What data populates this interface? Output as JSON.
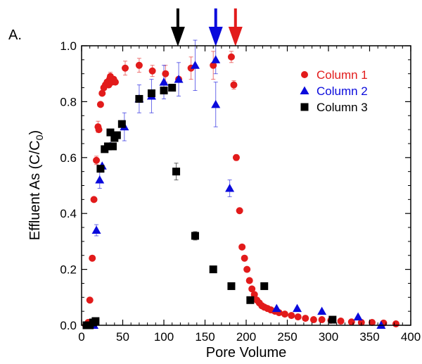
{
  "chart_data": {
    "type": "scatter",
    "panel_label": "A.",
    "xlabel": "Pore Volume",
    "ylabel_main": "Effluent As (C/C",
    "ylabel_sub": "0",
    "ylabel_close": ")",
    "xlim": [
      0,
      400
    ],
    "ylim": [
      0,
      1.0
    ],
    "xticks": [
      0,
      50,
      100,
      150,
      200,
      250,
      300,
      350,
      400
    ],
    "yticks": [
      0.0,
      0.2,
      0.4,
      0.6,
      0.8,
      1.0
    ],
    "xtick_labels": [
      "0",
      "50",
      "100",
      "150",
      "200",
      "250",
      "300",
      "350",
      "400"
    ],
    "ytick_labels": [
      "0.0",
      "0.2",
      "0.4",
      "0.6",
      "0.8",
      "1.0"
    ],
    "grid": false,
    "legend_position": "top-right",
    "arrows": [
      {
        "x": 117,
        "color": "#000000"
      },
      {
        "x": 163,
        "color": "#0a0adc"
      },
      {
        "x": 187,
        "color": "#e21b1b"
      }
    ],
    "series": [
      {
        "name": "Column 1",
        "color": "#e21b1b",
        "marker": "circle",
        "points": [
          [
            5,
            0.0
          ],
          [
            8,
            0.01
          ],
          [
            10,
            0.09
          ],
          [
            13,
            0.24
          ],
          [
            15,
            0.45
          ],
          [
            18,
            0.59
          ],
          [
            20,
            0.71
          ],
          [
            21,
            0.7
          ],
          [
            23,
            0.79
          ],
          [
            25,
            0.83
          ],
          [
            27,
            0.85
          ],
          [
            29,
            0.86
          ],
          [
            31,
            0.87
          ],
          [
            33,
            0.86
          ],
          [
            34,
            0.88
          ],
          [
            35,
            0.89
          ],
          [
            37,
            0.87
          ],
          [
            39,
            0.88
          ],
          [
            41,
            0.87
          ],
          [
            53,
            0.92
          ],
          [
            70,
            0.93
          ],
          [
            86,
            0.91
          ],
          [
            102,
            0.9
          ],
          [
            118,
            0.88
          ],
          [
            133,
            0.92
          ],
          [
            160,
            0.93
          ],
          [
            182,
            0.96
          ],
          [
            185,
            0.86
          ],
          [
            188,
            0.6
          ],
          [
            192,
            0.41
          ],
          [
            195,
            0.28
          ],
          [
            198,
            0.24
          ],
          [
            201,
            0.2
          ],
          [
            204,
            0.16
          ],
          [
            207,
            0.13
          ],
          [
            210,
            0.11
          ],
          [
            213,
            0.09
          ],
          [
            216,
            0.08
          ],
          [
            219,
            0.07
          ],
          [
            222,
            0.065
          ],
          [
            226,
            0.06
          ],
          [
            230,
            0.055
          ],
          [
            235,
            0.05
          ],
          [
            240,
            0.045
          ],
          [
            247,
            0.04
          ],
          [
            255,
            0.035
          ],
          [
            263,
            0.03
          ],
          [
            272,
            0.025
          ],
          [
            282,
            0.02
          ],
          [
            292,
            0.02
          ],
          [
            303,
            0.018
          ],
          [
            315,
            0.015
          ],
          [
            328,
            0.012
          ],
          [
            340,
            0.01
          ],
          [
            353,
            0.01
          ],
          [
            367,
            0.008
          ],
          [
            382,
            0.005
          ]
        ],
        "errors": [
          [
            18,
            0.59,
            0.015
          ],
          [
            20,
            0.71,
            0.02
          ],
          [
            35,
            0.89,
            0.015
          ],
          [
            53,
            0.92,
            0.025
          ],
          [
            70,
            0.93,
            0.025
          ],
          [
            86,
            0.91,
            0.02
          ],
          [
            102,
            0.9,
            0.03
          ],
          [
            133,
            0.92,
            0.04
          ],
          [
            160,
            0.93,
            0.05
          ],
          [
            182,
            0.96,
            0.02
          ],
          [
            185,
            0.86,
            0.015
          ],
          [
            188,
            0.6,
            0.01
          ]
        ]
      },
      {
        "name": "Column 2",
        "color": "#0a0adc",
        "marker": "triangle",
        "points": [
          [
            15,
            0.0
          ],
          [
            18,
            0.34
          ],
          [
            22,
            0.52
          ],
          [
            25,
            0.57
          ],
          [
            35,
            0.64
          ],
          [
            52,
            0.71
          ],
          [
            70,
            0.81
          ],
          [
            85,
            0.82
          ],
          [
            100,
            0.87
          ],
          [
            118,
            0.88
          ],
          [
            138,
            0.93
          ],
          [
            163,
            0.95
          ],
          [
            163,
            0.79
          ],
          [
            180,
            0.49
          ],
          [
            237,
            0.06
          ],
          [
            262,
            0.06
          ],
          [
            292,
            0.05
          ],
          [
            336,
            0.03
          ],
          [
            364,
            0.0
          ]
        ],
        "errors": [
          [
            18,
            0.34,
            0.02
          ],
          [
            22,
            0.52,
            0.03
          ],
          [
            52,
            0.71,
            0.05
          ],
          [
            70,
            0.81,
            0.05
          ],
          [
            85,
            0.82,
            0.06
          ],
          [
            100,
            0.87,
            0.06
          ],
          [
            118,
            0.88,
            0.06
          ],
          [
            138,
            0.93,
            0.09
          ],
          [
            163,
            0.95,
            0.05
          ],
          [
            163,
            0.79,
            0.08
          ],
          [
            180,
            0.49,
            0.03
          ]
        ]
      },
      {
        "name": "Column 3",
        "color": "#000000",
        "marker": "square",
        "points": [
          [
            6,
            0.0
          ],
          [
            10,
            0.0
          ],
          [
            14,
            0.01
          ],
          [
            17,
            0.015
          ],
          [
            23,
            0.56
          ],
          [
            28,
            0.63
          ],
          [
            32,
            0.64
          ],
          [
            35,
            0.69
          ],
          [
            38,
            0.64
          ],
          [
            40,
            0.67
          ],
          [
            43,
            0.68
          ],
          [
            49,
            0.72
          ],
          [
            70,
            0.81
          ],
          [
            85,
            0.83
          ],
          [
            100,
            0.84
          ],
          [
            110,
            0.85
          ],
          [
            115,
            0.55
          ],
          [
            138,
            0.32
          ],
          [
            160,
            0.2
          ],
          [
            182,
            0.14
          ],
          [
            205,
            0.09
          ],
          [
            222,
            0.14
          ],
          [
            305,
            0.02
          ]
        ],
        "errors": [
          [
            115,
            0.55,
            0.03
          ],
          [
            138,
            0.32,
            0.015
          ]
        ]
      }
    ]
  }
}
